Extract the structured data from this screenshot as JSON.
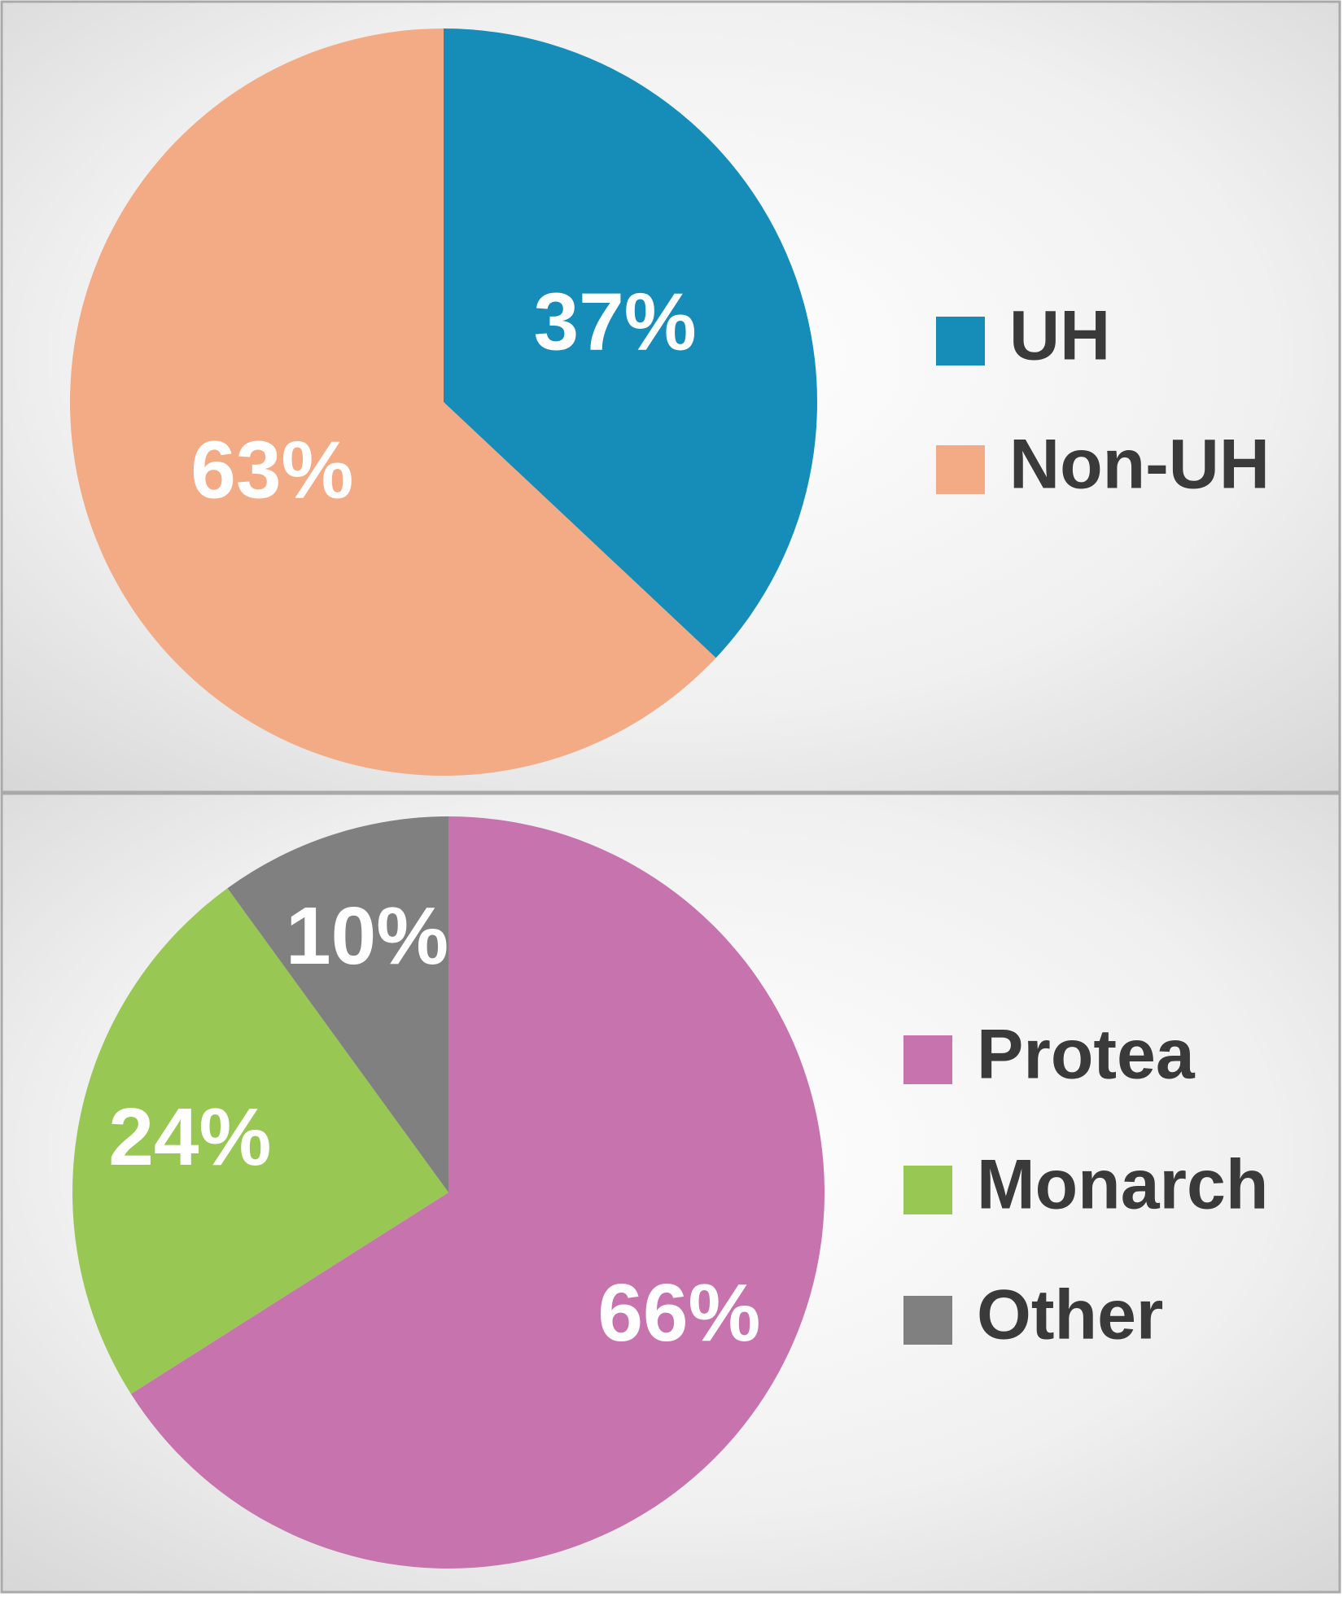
{
  "chart_data": [
    {
      "type": "pie",
      "categories": [
        "UH",
        "Non-UH"
      ],
      "values": [
        37,
        63
      ],
      "value_labels": [
        "37%",
        "63%"
      ],
      "colors": [
        "#168cb9",
        "#f2ab85"
      ]
    },
    {
      "type": "pie",
      "categories": [
        "Protea",
        "Monarch",
        "Other"
      ],
      "values": [
        66,
        24,
        10
      ],
      "value_labels": [
        "66%",
        "24%",
        "10%"
      ],
      "colors": [
        "#c673ae",
        "#98c853",
        "#808080"
      ]
    }
  ]
}
